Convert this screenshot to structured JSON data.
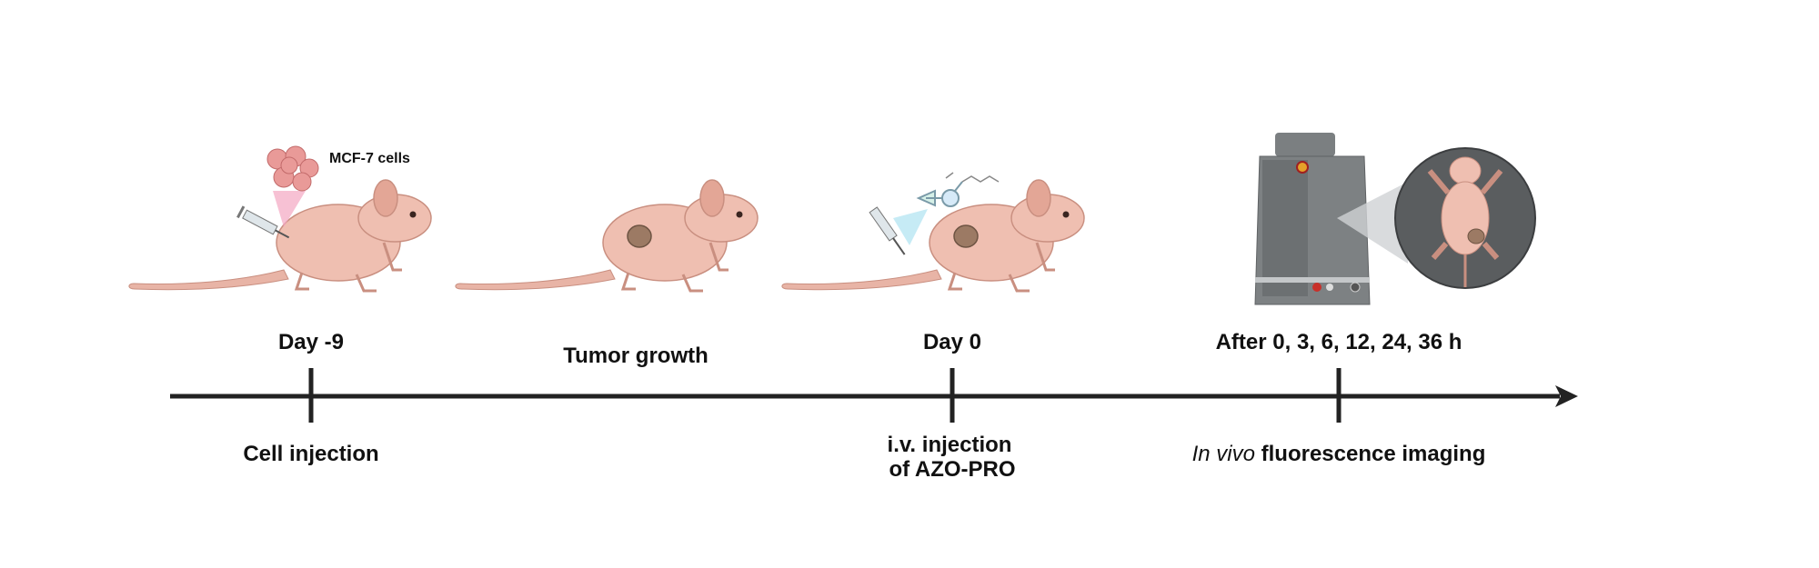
{
  "cells_label": "MCF-7 cells",
  "timeline": {
    "above": [
      "Day -9",
      "Tumor growth",
      "Day 0",
      "After 0, 3, 6, 12, 24, 36 h"
    ],
    "below": {
      "cell_injection": "Cell injection",
      "iv_line1": "i.v. injection",
      "iv_line2": "of AZO-PRO",
      "imaging_italic": "In vivo",
      "imaging_rest": "fluorescence imaging"
    }
  }
}
